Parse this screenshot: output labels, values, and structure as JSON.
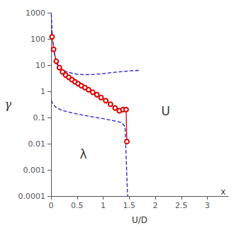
{
  "chart_data": {
    "type": "line",
    "title": "",
    "xlabel": "U/D",
    "ylabel": "γ",
    "log": "y",
    "grid": false,
    "xlim": [
      0,
      3.4
    ],
    "xticks": [
      0,
      0.5,
      1,
      1.5,
      2,
      2.5,
      3
    ],
    "ylim": [
      0.0001,
      1000
    ],
    "yticks": [
      0.0001,
      0.001,
      0.01,
      0.1,
      1,
      10,
      100,
      1000
    ],
    "series": [
      {
        "color": "#dd0000",
        "marker": "circle",
        "line_style": "solid",
        "x": [
          0.02,
          0.05,
          0.1,
          0.16,
          0.22,
          0.28,
          0.34,
          0.4,
          0.46,
          0.52,
          0.58,
          0.65,
          0.72,
          0.8,
          0.88,
          0.96,
          1.05,
          1.14,
          1.23,
          1.31,
          1.38,
          1.44,
          1.455
        ],
        "values": [
          120,
          40,
          14,
          8.0,
          5.5,
          4.2,
          3.4,
          2.8,
          2.3,
          1.95,
          1.65,
          1.38,
          1.15,
          0.92,
          0.74,
          0.58,
          0.44,
          0.32,
          0.23,
          0.18,
          0.2,
          0.2,
          0.012
        ]
      },
      {
        "color": "#2222cc",
        "line_style": "dashed",
        "x": [
          0.005,
          0.02,
          0.05,
          0.1,
          0.2,
          0.35,
          0.5,
          0.7,
          0.9,
          1.1,
          1.3,
          1.5,
          1.7
        ],
        "values": [
          900,
          200,
          40,
          12,
          6.5,
          5.2,
          4.5,
          4.3,
          4.5,
          5.0,
          5.5,
          6.0,
          6.3
        ]
      },
      {
        "color": "#2222cc",
        "line_style": "dashed",
        "x": [
          0.005,
          0.02,
          0.05,
          0.1,
          0.2,
          0.4,
          0.6,
          0.8,
          1.0,
          1.2,
          1.35,
          1.42,
          1.46,
          1.47
        ],
        "values": [
          0.45,
          0.38,
          0.3,
          0.24,
          0.19,
          0.15,
          0.125,
          0.105,
          0.09,
          0.075,
          0.065,
          0.045,
          0.0003,
          0.0001
        ]
      }
    ],
    "annotations": [
      {
        "text": "λ",
        "x": 0.62,
        "y": 0.004
      },
      {
        "text": "U",
        "x": 2.2,
        "y": 0.18
      },
      {
        "text": "x",
        "x": 3.35,
        "y": 0.0001
      }
    ]
  }
}
